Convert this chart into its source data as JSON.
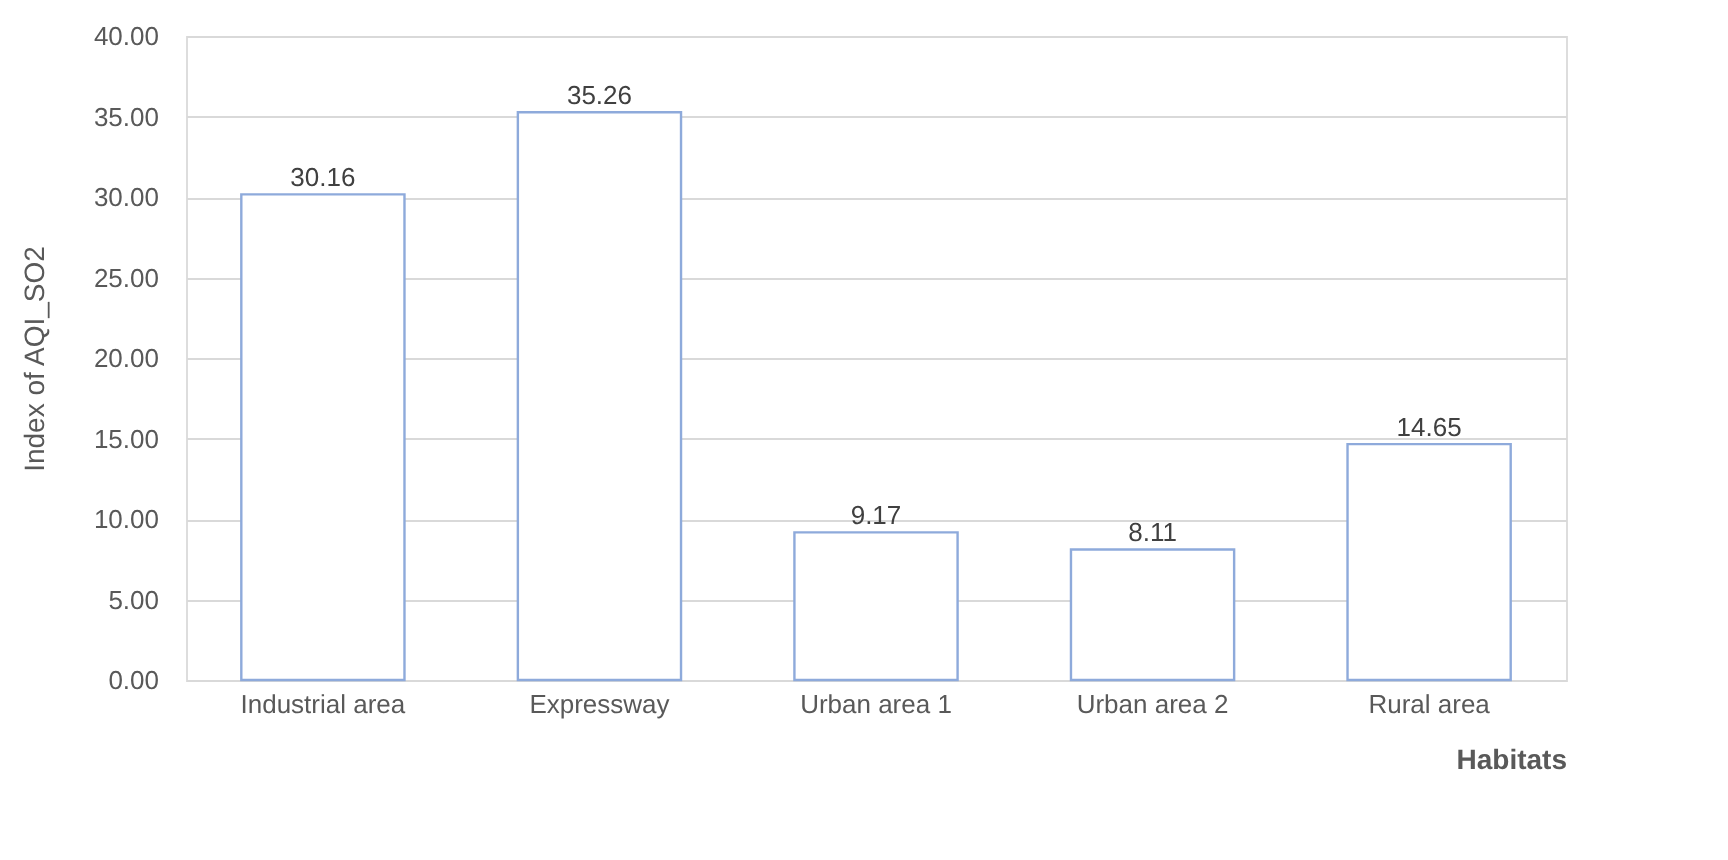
{
  "chart_data": {
    "type": "bar",
    "xlabel": "Habitats",
    "ylabel": "Index of AQI_SO2",
    "categories": [
      "Industrial area",
      "Expressway",
      "Urban area 1",
      "Urban area 2",
      "Rural area"
    ],
    "values": [
      30.16,
      35.26,
      9.17,
      8.11,
      14.65
    ],
    "color": "#8eaadb",
    "ylim": [
      0,
      40
    ],
    "yticks": [
      {
        "value": 0,
        "label": "0.00"
      },
      {
        "value": 5,
        "label": "5.00"
      },
      {
        "value": 10,
        "label": "10.00"
      },
      {
        "value": 15,
        "label": "15.00"
      },
      {
        "value": 20,
        "label": "20.00"
      },
      {
        "value": 25,
        "label": "25.00"
      },
      {
        "value": 30,
        "label": "30.00"
      },
      {
        "value": 35,
        "label": "35.00"
      },
      {
        "value": 40,
        "label": "40.00"
      }
    ],
    "grid": "y",
    "data_labels": true
  }
}
